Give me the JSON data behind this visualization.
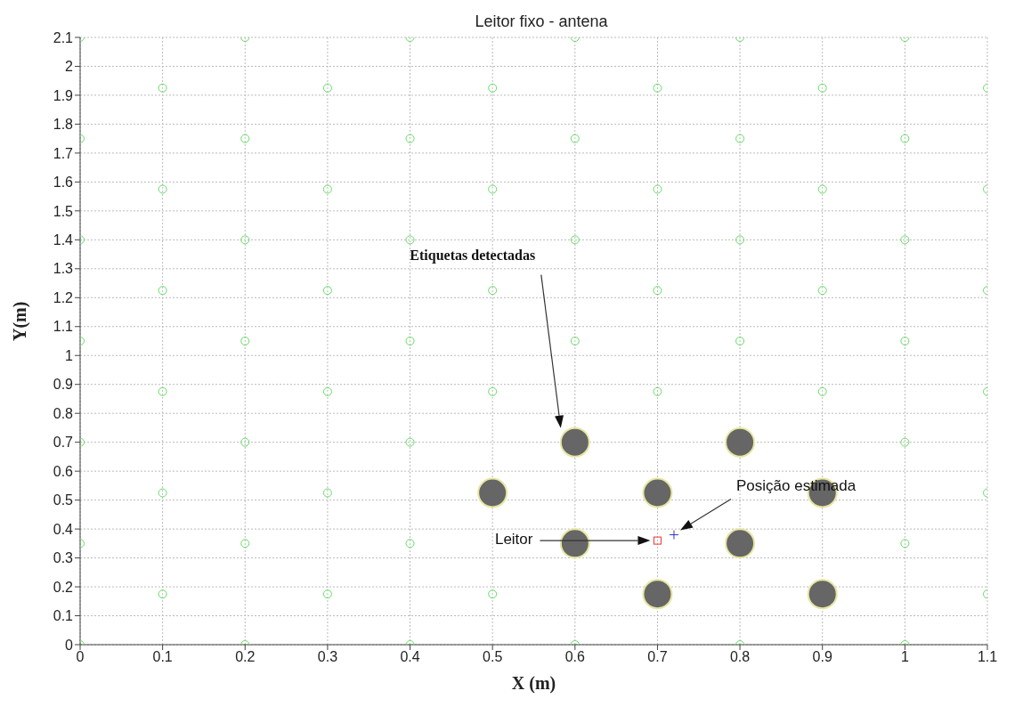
{
  "chart_data": {
    "type": "scatter",
    "title": "Leitor fixo - antena",
    "xlabel": "X (m)",
    "ylabel": "Y(m)",
    "xlim": [
      0,
      1.1
    ],
    "xticks": [
      0,
      0.1,
      0.2,
      0.3,
      0.4,
      0.5,
      0.6,
      0.7,
      0.8,
      0.9,
      1,
      1.1
    ],
    "ylim": [
      0,
      2.1
    ],
    "yticks": [
      0,
      0.1,
      0.2,
      0.3,
      0.4,
      0.5,
      0.6,
      0.7,
      0.8,
      0.9,
      1,
      1.1,
      1.2,
      1.3,
      1.4,
      1.5,
      1.6,
      1.7,
      1.8,
      1.9,
      2,
      2.1
    ],
    "grid": true,
    "series": [
      {
        "color": "#66dd66",
        "marker": "circle",
        "x": [
          0,
          0.2,
          0.4,
          0.6,
          0.8,
          1,
          0.1,
          0.3,
          0.5,
          1.1,
          0,
          0.2,
          0.4,
          1,
          0.1,
          0.3,
          1.1,
          0,
          0.2,
          0.4,
          1,
          0.1,
          0.3,
          0.5,
          0.7,
          0.9,
          1.1,
          0,
          0.2,
          0.4,
          0.6,
          0.8,
          1,
          0.1,
          0.3,
          0.5,
          0.7,
          0.9,
          1.1,
          0,
          0.2,
          0.4,
          0.6,
          0.8,
          1,
          0.1,
          0.3,
          0.5,
          0.7,
          0.9,
          1.1,
          0,
          0.2,
          0.4,
          0.6,
          0.8,
          1,
          0.1,
          0.3,
          0.5,
          0.7,
          0.9,
          1.1,
          0,
          0.2,
          0.4,
          0.6,
          0.8,
          1
        ],
        "values": [
          0,
          0,
          0,
          0,
          0,
          0,
          0.175,
          0.175,
          0.175,
          0.175,
          0.35,
          0.35,
          0.35,
          0.35,
          0.525,
          0.525,
          0.525,
          0.7,
          0.7,
          0.7,
          0.7,
          0.875,
          0.875,
          0.875,
          0.875,
          0.875,
          0.875,
          1.05,
          1.05,
          1.05,
          1.05,
          1.05,
          1.05,
          1.225,
          1.225,
          1.225,
          1.225,
          1.225,
          1.225,
          1.4,
          1.4,
          1.4,
          1.4,
          1.4,
          1.4,
          1.575,
          1.575,
          1.575,
          1.575,
          1.575,
          1.575,
          1.75,
          1.75,
          1.75,
          1.75,
          1.75,
          1.75,
          1.925,
          1.925,
          1.925,
          1.925,
          1.925,
          1.925,
          2.1,
          2.1,
          2.1,
          2.1,
          2.1,
          2.1
        ]
      },
      {
        "color": "#666666",
        "marker": "circle",
        "x": [
          0.6,
          0.8,
          0.5,
          0.7,
          0.9,
          0.6,
          0.8,
          0.7,
          0.9
        ],
        "values": [
          0.7,
          0.7,
          0.525,
          0.525,
          0.525,
          0.35,
          0.35,
          0.175,
          0.175
        ]
      },
      {
        "color": "#ee3333",
        "marker": "square",
        "x": [
          0.7
        ],
        "values": [
          0.36
        ]
      },
      {
        "color": "#3333cc",
        "marker": "cross",
        "x": [
          0.72
        ],
        "values": [
          0.38
        ]
      }
    ],
    "annotations": [
      "Etiquetas detectadas",
      "Leitor",
      "Posição estimada"
    ]
  }
}
